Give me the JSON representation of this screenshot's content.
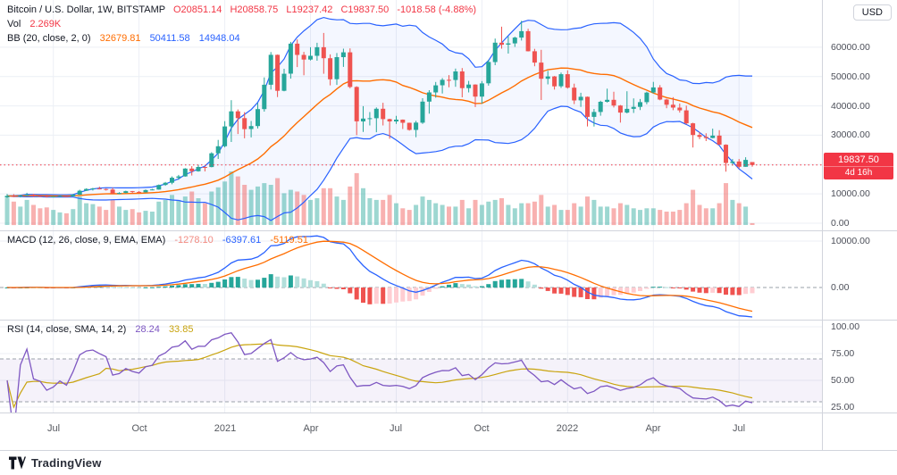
{
  "header": {
    "symbol": "Bitcoin / U.S. Dollar, 1W, BITSTAMP",
    "ohlc": {
      "o_label": "O",
      "o": "20851.14",
      "h_label": "H",
      "h": "20858.75",
      "l_label": "L",
      "l": "19237.42",
      "c_label": "C",
      "c": "19837.50",
      "change": "-1018.58 (-4.88%)"
    },
    "vol_label": "Vol",
    "vol_value": "2.269K",
    "bb": {
      "label": "BB (20, close, 2, 0)",
      "basis": "32679.81",
      "upper": "50411.58",
      "lower": "14948.04"
    }
  },
  "macd_legend": {
    "label": "MACD (12, 26, close, 9, EMA, EMA)",
    "hist": "-1278.10",
    "macd": "-6397.61",
    "signal": "-5119.51"
  },
  "rsi_legend": {
    "label": "RSI (14, close, SMA, 14, 2)",
    "rsi": "28.24",
    "sma": "33.85"
  },
  "axis": {
    "currency_button": "USD",
    "price_ticks": [
      {
        "v": 60000,
        "label": "60000.00"
      },
      {
        "v": 50000,
        "label": "50000.00"
      },
      {
        "v": 40000,
        "label": "40000.00"
      },
      {
        "v": 30000,
        "label": "30000.00"
      },
      {
        "v": 10000,
        "label": "10000.00"
      },
      {
        "v": 0,
        "label": "0.00"
      }
    ],
    "price_badge": {
      "value": "19837.50",
      "countdown": "4d 16h"
    },
    "macd_ticks": [
      {
        "v": 10000,
        "label": "10000.00"
      },
      {
        "v": 0,
        "label": "0.00"
      }
    ],
    "rsi_ticks": [
      {
        "v": 100,
        "label": "100.00"
      },
      {
        "v": 75,
        "label": "75.00"
      },
      {
        "v": 50,
        "label": "50.00"
      },
      {
        "v": 25,
        "label": "25.00"
      }
    ]
  },
  "footer": {
    "brand": "TradingView"
  },
  "colors": {
    "up": "#26A69A",
    "down": "#EF5350",
    "vol_up": "rgba(38,166,154,0.45)",
    "vol_down": "rgba(239,83,80,0.45)",
    "bb_basis": "#FF6D00",
    "bb_band": "#2962FF",
    "bb_fill": "rgba(41,98,255,0.05)",
    "macd_line": "#2962FF",
    "signal_line": "#FF6D00",
    "hist_grow_above": "#26A69A",
    "hist_fall_above": "#B2DFDB",
    "hist_grow_below": "#FFCDD2",
    "hist_fall_below": "#EF5350",
    "rsi_line": "#7E57C2",
    "rsi_sma": "#C9A40E",
    "rsi_band_fill": "rgba(126,87,194,0.08)",
    "price_line": "#F23645",
    "grid": "#eceff5",
    "dashed": "#9aa0aa",
    "divider": "#d1d4dc"
  },
  "chart_data": {
    "type": "candlestick",
    "symbol": "BTCUSD",
    "exchange": "BITSTAMP",
    "timeframe": "1W",
    "current_price": 19837.5,
    "price_axis_range": [
      0,
      70000
    ],
    "macd_axis_range": [
      -8000,
      12300
    ],
    "rsi_axis_range": [
      20,
      100
    ],
    "indicators": {
      "bb": {
        "length": 20,
        "mult": 2
      },
      "macd": {
        "fast": 12,
        "slow": 26,
        "signal": 9
      },
      "rsi": {
        "length": 14,
        "sma": 14,
        "upper_band": 70,
        "lower_band": 30
      }
    },
    "time_ticks": [
      {
        "i": 7,
        "label": "Jul"
      },
      {
        "i": 20,
        "label": "Oct"
      },
      {
        "i": 33,
        "label": "2021"
      },
      {
        "i": 46,
        "label": "Apr"
      },
      {
        "i": 59,
        "label": "Jul"
      },
      {
        "i": 72,
        "label": "Oct"
      },
      {
        "i": 85,
        "label": "2022"
      },
      {
        "i": 98,
        "label": "Apr"
      },
      {
        "i": 111,
        "label": "Jul"
      }
    ],
    "columns": [
      "open",
      "high",
      "low",
      "close",
      "volume_k"
    ],
    "candles": [
      [
        8750,
        9970,
        8550,
        9320,
        32
      ],
      [
        9320,
        9880,
        8920,
        9170,
        28
      ],
      [
        9170,
        9720,
        8810,
        9440,
        22
      ],
      [
        9440,
        10390,
        9330,
        9740,
        30
      ],
      [
        9740,
        9920,
        8950,
        9350,
        24
      ],
      [
        9350,
        9590,
        8990,
        9300,
        20
      ],
      [
        9300,
        9750,
        8840,
        9060,
        21
      ],
      [
        9060,
        9230,
        8940,
        9135,
        18
      ],
      [
        9135,
        9470,
        9110,
        9300,
        15
      ],
      [
        9300,
        9340,
        9050,
        9160,
        14
      ],
      [
        9160,
        9990,
        9120,
        9700,
        19
      ],
      [
        9700,
        11420,
        9660,
        11080,
        34
      ],
      [
        11080,
        11900,
        10960,
        11680,
        26
      ],
      [
        11680,
        12060,
        11130,
        11850,
        25
      ],
      [
        11850,
        12470,
        11550,
        11650,
        22
      ],
      [
        11650,
        11820,
        11120,
        11480,
        18
      ],
      [
        11480,
        12070,
        9960,
        10170,
        30
      ],
      [
        10170,
        10580,
        9880,
        10330,
        22
      ],
      [
        10330,
        11090,
        10210,
        10920,
        18
      ],
      [
        10920,
        10990,
        10150,
        10690,
        19
      ],
      [
        10690,
        10950,
        10380,
        10550,
        15
      ],
      [
        10550,
        11480,
        10490,
        11300,
        17
      ],
      [
        11300,
        11720,
        11220,
        11500,
        16
      ],
      [
        11500,
        13220,
        11400,
        13040,
        28
      ],
      [
        13040,
        14060,
        12740,
        13780,
        30
      ],
      [
        13780,
        15950,
        13280,
        15480,
        36
      ],
      [
        15480,
        16480,
        14810,
        15950,
        30
      ],
      [
        15950,
        18770,
        15860,
        18640,
        34
      ],
      [
        18640,
        19460,
        16250,
        17720,
        40
      ],
      [
        17720,
        19900,
        17600,
        19170,
        32
      ],
      [
        19170,
        19290,
        17650,
        19160,
        26
      ],
      [
        19160,
        24200,
        19050,
        23840,
        40
      ],
      [
        23840,
        28390,
        21900,
        26250,
        45
      ],
      [
        26250,
        34780,
        25840,
        33000,
        52
      ],
      [
        33000,
        41950,
        27700,
        38150,
        64
      ],
      [
        38150,
        38780,
        30400,
        35830,
        58
      ],
      [
        35830,
        37850,
        28950,
        32100,
        48
      ],
      [
        32100,
        34850,
        29240,
        33110,
        42
      ],
      [
        33110,
        40950,
        32290,
        38900,
        46
      ],
      [
        38900,
        49700,
        38050,
        47200,
        50
      ],
      [
        47200,
        58350,
        45570,
        57400,
        48
      ],
      [
        57400,
        57500,
        43000,
        45140,
        56
      ],
      [
        45140,
        52640,
        44950,
        50960,
        38
      ],
      [
        50960,
        61800,
        49270,
        61200,
        42
      ],
      [
        61200,
        62650,
        53220,
        57370,
        40
      ],
      [
        57370,
        58400,
        50430,
        55780,
        36
      ],
      [
        55780,
        60000,
        55480,
        57060,
        30
      ],
      [
        57060,
        61500,
        55400,
        59980,
        32
      ],
      [
        59980,
        64850,
        50950,
        56250,
        44
      ],
      [
        56250,
        57550,
        47000,
        49080,
        44
      ],
      [
        49080,
        58000,
        47130,
        56600,
        34
      ],
      [
        56600,
        59500,
        53300,
        58250,
        30
      ],
      [
        58250,
        59600,
        46000,
        46430,
        46
      ],
      [
        46430,
        46700,
        30000,
        34700,
        62
      ],
      [
        34700,
        39900,
        31100,
        35660,
        44
      ],
      [
        35660,
        37900,
        33330,
        35790,
        32
      ],
      [
        35790,
        39480,
        31000,
        39020,
        30
      ],
      [
        39020,
        41060,
        33320,
        35480,
        30
      ],
      [
        35480,
        35600,
        28800,
        34700,
        36
      ],
      [
        34700,
        36600,
        33860,
        35300,
        26
      ],
      [
        35300,
        35350,
        32110,
        34240,
        20
      ],
      [
        34240,
        34260,
        31550,
        31800,
        18
      ],
      [
        31800,
        34900,
        29300,
        34290,
        24
      ],
      [
        34290,
        42600,
        33850,
        41460,
        34
      ],
      [
        41460,
        45340,
        37330,
        44600,
        30
      ],
      [
        44600,
        48150,
        42780,
        47000,
        26
      ],
      [
        47000,
        49500,
        44210,
        48870,
        24
      ],
      [
        48870,
        50500,
        46350,
        48830,
        22
      ],
      [
        48830,
        52700,
        46500,
        51750,
        22
      ],
      [
        51750,
        52900,
        42900,
        46050,
        30
      ],
      [
        46050,
        48500,
        44580,
        47260,
        20
      ],
      [
        47260,
        47350,
        39600,
        43160,
        30
      ],
      [
        43160,
        48450,
        40750,
        47670,
        24
      ],
      [
        47670,
        55750,
        46900,
        54950,
        28
      ],
      [
        54950,
        62930,
        53880,
        61550,
        30
      ],
      [
        61550,
        66990,
        59510,
        60860,
        32
      ],
      [
        60860,
        63720,
        57820,
        61300,
        24
      ],
      [
        61300,
        63590,
        60120,
        63270,
        20
      ],
      [
        63270,
        68990,
        62280,
        65470,
        26
      ],
      [
        65470,
        66300,
        58570,
        58620,
        26
      ],
      [
        58620,
        59450,
        53500,
        54750,
        28
      ],
      [
        54750,
        59100,
        42000,
        49250,
        36
      ],
      [
        49250,
        51940,
        47320,
        50050,
        22
      ],
      [
        50050,
        50200,
        45560,
        46680,
        24
      ],
      [
        46680,
        51380,
        46120,
        50800,
        18
      ],
      [
        50800,
        52100,
        45900,
        46210,
        18
      ],
      [
        46210,
        47560,
        40610,
        41870,
        26
      ],
      [
        41870,
        44450,
        39660,
        43090,
        22
      ],
      [
        43090,
        43190,
        33000,
        36240,
        34
      ],
      [
        36240,
        38960,
        32950,
        37920,
        30
      ],
      [
        37920,
        41770,
        36640,
        41400,
        22
      ],
      [
        41400,
        45850,
        41130,
        42070,
        22
      ],
      [
        42070,
        44800,
        39450,
        40120,
        20
      ],
      [
        40120,
        40290,
        34300,
        37710,
        26
      ],
      [
        37710,
        44990,
        37450,
        38990,
        24
      ],
      [
        38990,
        42550,
        37600,
        39670,
        20
      ],
      [
        39670,
        42320,
        38550,
        41280,
        18
      ],
      [
        41280,
        44820,
        40540,
        44540,
        20
      ],
      [
        44540,
        48190,
        44250,
        46280,
        20
      ],
      [
        46280,
        47080,
        41900,
        42150,
        18
      ],
      [
        42150,
        42420,
        39200,
        40380,
        16
      ],
      [
        40380,
        42970,
        38540,
        39420,
        16
      ],
      [
        39420,
        40800,
        37700,
        38470,
        18
      ],
      [
        38470,
        40070,
        33700,
        34060,
        26
      ],
      [
        34060,
        34240,
        25800,
        30080,
        42
      ],
      [
        30080,
        31070,
        28650,
        29440,
        24
      ],
      [
        29440,
        30650,
        28000,
        29030,
        20
      ],
      [
        29030,
        32220,
        28960,
        29860,
        20
      ],
      [
        29860,
        31700,
        26660,
        26760,
        26
      ],
      [
        26760,
        26890,
        17600,
        20550,
        50
      ],
      [
        20550,
        21870,
        19640,
        21030,
        30
      ],
      [
        21030,
        21880,
        18620,
        19240,
        26
      ],
      [
        19240,
        22480,
        19240,
        21590,
        22
      ],
      [
        20851.14,
        20858.75,
        19237.42,
        19837.5,
        2.269
      ]
    ]
  }
}
